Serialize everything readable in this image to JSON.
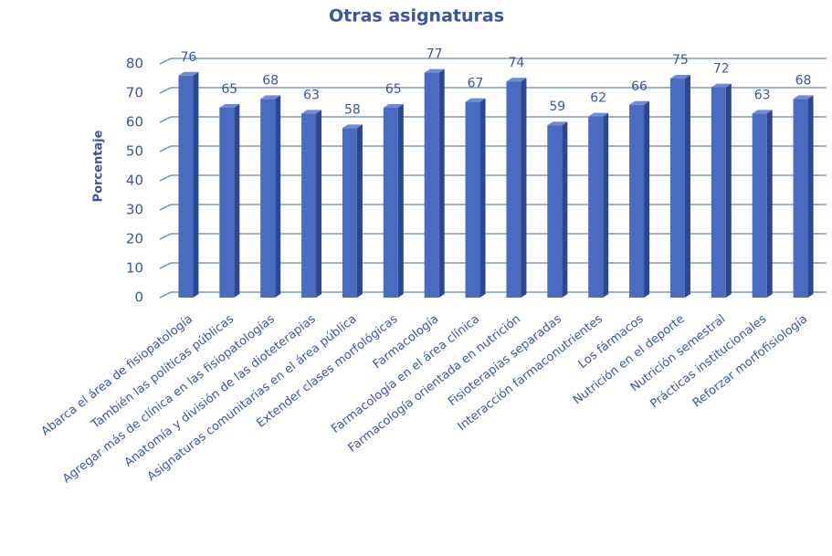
{
  "chart_data": {
    "type": "bar3d",
    "title": "Otras asignaturas",
    "y_label": "Porcentaje",
    "categories": [
      "Abarca el área de fisiopatología",
      "También las políticas públicas",
      "Agregar más de clínica en las fisiopatologías",
      "Anatomía y división de las dioteterapias",
      "Asignaturas comunitarias en el área pública",
      "Extender clases morfológicas",
      "Farmacología",
      "Farmacología en el área clínica",
      "Farmacología orientada en nutrición",
      "Fisioterapias separadas",
      "Interacción farmaconutrientes",
      "Los fármacos",
      "Nutrición en el deporte",
      "Nutrición semestral",
      "Prácticas institucionales",
      "Reforzar morfofisiología"
    ],
    "values": [
      76,
      65,
      68,
      63,
      58,
      65,
      77,
      67,
      74,
      59,
      62,
      66,
      75,
      72,
      63,
      68
    ],
    "color": "#4a6cc0",
    "ylim": [
      0,
      80
    ],
    "yticks": [
      0,
      10,
      20,
      30,
      40,
      50,
      60,
      70,
      80
    ],
    "grid": true
  }
}
